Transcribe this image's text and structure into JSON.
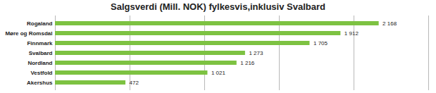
{
  "chart_data": {
    "type": "bar",
    "orientation": "horizontal",
    "title": "Salgsverdi (Mill. NOK) fylkesvis,inklusiv Svalbard",
    "categories": [
      "Rogaland",
      "Møre og Romsdal",
      "Finnmark",
      "Svalbard",
      "Nordland",
      "Vestfold",
      "Akershus"
    ],
    "values": [
      2168,
      1912,
      1705,
      1273,
      1216,
      1021,
      472
    ],
    "value_labels": [
      "2 168",
      "1 912",
      "1 705",
      "1 273",
      "1 216",
      "1 021",
      "472"
    ],
    "color": "#7dc242",
    "xlim": [
      0,
      2500
    ],
    "xticks": [
      0,
      500,
      1000,
      1500,
      2000,
      2500
    ],
    "grid": true,
    "data_labels": true,
    "tick_labels": "y"
  }
}
